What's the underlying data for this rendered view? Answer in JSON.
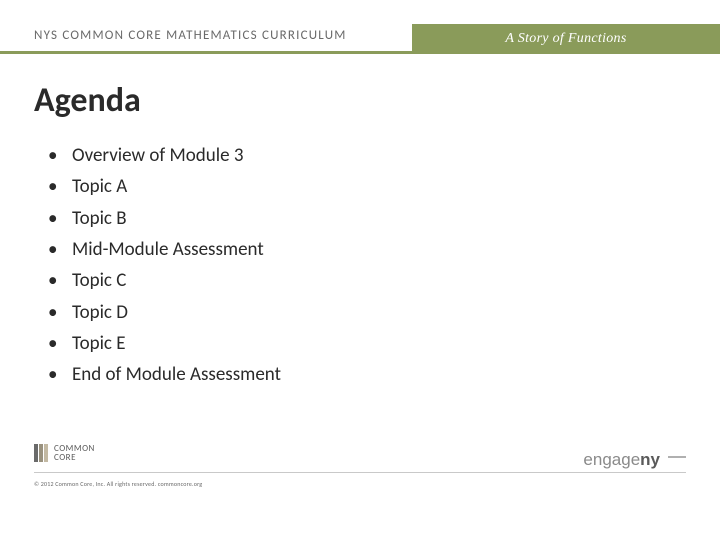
{
  "header": {
    "left": "NYS COMMON CORE MATHEMATICS CURRICULUM",
    "right": "A Story of Functions",
    "accent_color": "#8a9b5a",
    "left_text_color": "#6a6a6a",
    "right_text_color": "#ffffff"
  },
  "title": "Agenda",
  "bullets": [
    "Overview of Module 3",
    "Topic A",
    "Topic B",
    "Mid-Module Assessment",
    "Topic C",
    "Topic D",
    "Topic E",
    "End of Module Assessment"
  ],
  "footer": {
    "logo_common_core_line1": "COMMON",
    "logo_common_core_line2": "CORE",
    "copyright": "© 2012 Common Core, Inc. All rights reserved. commoncore.org",
    "logo_engage_prefix": "engage",
    "logo_engage_suffix": "ny"
  },
  "colors": {
    "background": "#ffffff",
    "text": "#2a2a2a",
    "muted": "#6a6a6a",
    "rule": "#c9c9c9"
  }
}
